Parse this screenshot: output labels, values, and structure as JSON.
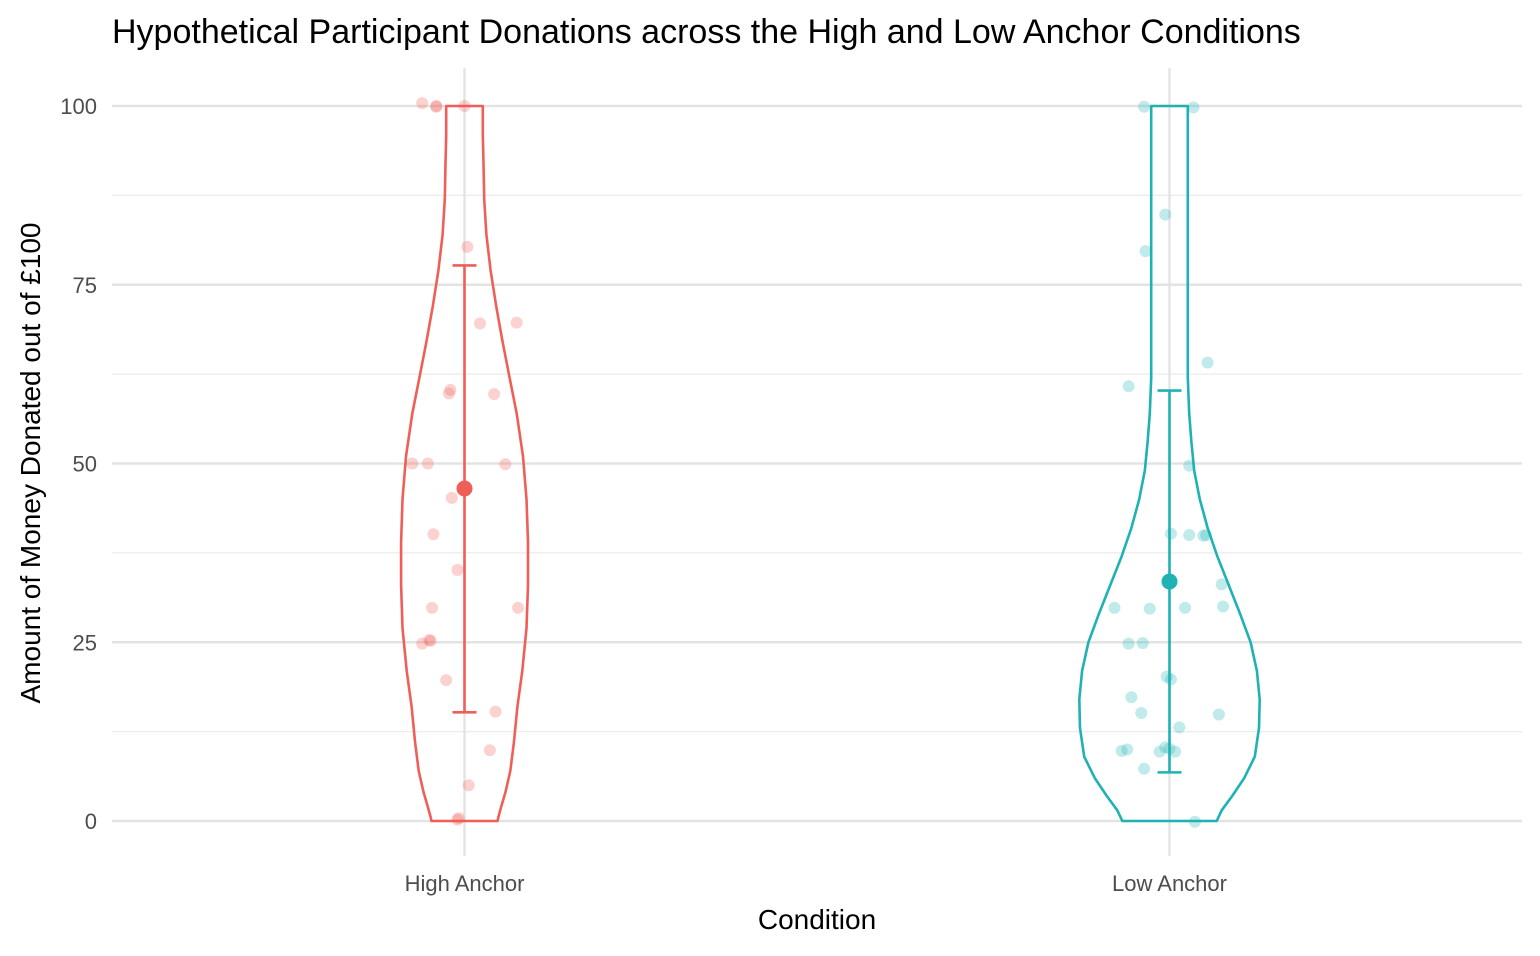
{
  "chart_data": {
    "type": "violin",
    "title": "Hypothetical Participant Donations across the High and Low Anchor Conditions",
    "xlabel": "Condition",
    "ylabel": "Amount of Money Donated out of £100",
    "ylim": [
      0,
      100
    ],
    "y_ticks": [
      0,
      25,
      50,
      75,
      100
    ],
    "y_tick_labels": [
      "0",
      "25",
      "50",
      "75",
      "100"
    ],
    "categories": [
      "High Anchor",
      "Low Anchor"
    ],
    "grid": true,
    "legend": "none",
    "series": [
      {
        "category": "High Anchor",
        "color": "#EF5F57",
        "mean": 46.5,
        "error_bar": [
          15.2,
          77.7
        ],
        "points": [
          {
            "dx": -0.06,
            "y": 100.4
          },
          {
            "dx": -0.04,
            "y": 100
          },
          {
            "dx": -0.04,
            "y": 99.9
          },
          {
            "dx": 0.0,
            "y": 100
          },
          {
            "dx": 0.004,
            "y": 80.3
          },
          {
            "dx": 0.022,
            "y": 69.6
          },
          {
            "dx": 0.074,
            "y": 69.7
          },
          {
            "dx": -0.02,
            "y": 60.3
          },
          {
            "dx": -0.022,
            "y": 59.8
          },
          {
            "dx": 0.042,
            "y": 59.7
          },
          {
            "dx": -0.074,
            "y": 50.0
          },
          {
            "dx": -0.052,
            "y": 50.0
          },
          {
            "dx": 0.058,
            "y": 49.9
          },
          {
            "dx": -0.018,
            "y": 45.2
          },
          {
            "dx": -0.044,
            "y": 40.1
          },
          {
            "dx": -0.01,
            "y": 35.1
          },
          {
            "dx": -0.046,
            "y": 29.8
          },
          {
            "dx": 0.076,
            "y": 29.8
          },
          {
            "dx": -0.05,
            "y": 25.3
          },
          {
            "dx": -0.048,
            "y": 25.2
          },
          {
            "dx": -0.06,
            "y": 24.8
          },
          {
            "dx": -0.026,
            "y": 19.7
          },
          {
            "dx": 0.044,
            "y": 15.3
          },
          {
            "dx": 0.036,
            "y": 9.9
          },
          {
            "dx": 0.006,
            "y": 5.0
          },
          {
            "dx": -0.01,
            "y": 0.2
          },
          {
            "dx": -0.008,
            "y": 0.4
          }
        ],
        "violin_profile": [
          [
            0,
            0.047
          ],
          [
            0.5,
            0.048
          ],
          [
            2,
            0.052
          ],
          [
            4,
            0.058
          ],
          [
            7,
            0.065
          ],
          [
            11,
            0.07
          ],
          [
            16,
            0.075
          ],
          [
            21,
            0.082
          ],
          [
            27,
            0.088
          ],
          [
            33,
            0.09
          ],
          [
            39,
            0.09
          ],
          [
            45,
            0.088
          ],
          [
            51,
            0.083
          ],
          [
            57,
            0.074
          ],
          [
            62,
            0.064
          ],
          [
            67,
            0.054
          ],
          [
            72,
            0.045
          ],
          [
            77,
            0.037
          ],
          [
            82,
            0.031
          ],
          [
            87,
            0.028
          ],
          [
            92,
            0.027
          ],
          [
            96,
            0.026
          ],
          [
            100,
            0.026
          ]
        ]
      },
      {
        "category": "Low Anchor",
        "color": "#1FB2B4",
        "mean": 33.5,
        "error_bar": [
          6.8,
          60.2
        ],
        "points": [
          {
            "dx": -0.036,
            "y": 99.9
          },
          {
            "dx": 0.034,
            "y": 99.8
          },
          {
            "dx": -0.006,
            "y": 84.8
          },
          {
            "dx": -0.034,
            "y": 79.7
          },
          {
            "dx": 0.054,
            "y": 64.1
          },
          {
            "dx": -0.058,
            "y": 60.8
          },
          {
            "dx": 0.028,
            "y": 49.7
          },
          {
            "dx": 0.002,
            "y": 40.2
          },
          {
            "dx": 0.028,
            "y": 40.0
          },
          {
            "dx": 0.048,
            "y": 39.9
          },
          {
            "dx": 0.052,
            "y": 40.0
          },
          {
            "dx": 0.0,
            "y": 33.2
          },
          {
            "dx": 0.074,
            "y": 33.1
          },
          {
            "dx": -0.078,
            "y": 29.8
          },
          {
            "dx": -0.028,
            "y": 29.7
          },
          {
            "dx": 0.022,
            "y": 29.8
          },
          {
            "dx": 0.076,
            "y": 30.0
          },
          {
            "dx": -0.058,
            "y": 24.8
          },
          {
            "dx": -0.038,
            "y": 24.9
          },
          {
            "dx": -0.004,
            "y": 20.2
          },
          {
            "dx": 0.002,
            "y": 19.8
          },
          {
            "dx": -0.054,
            "y": 17.3
          },
          {
            "dx": -0.04,
            "y": 15.1
          },
          {
            "dx": 0.07,
            "y": 14.9
          },
          {
            "dx": 0.014,
            "y": 13.1
          },
          {
            "dx": -0.068,
            "y": 9.8
          },
          {
            "dx": -0.06,
            "y": 10.0
          },
          {
            "dx": -0.014,
            "y": 9.7
          },
          {
            "dx": -0.006,
            "y": 10.3
          },
          {
            "dx": 0.0,
            "y": 10.1
          },
          {
            "dx": 0.008,
            "y": 9.7
          },
          {
            "dx": -0.036,
            "y": 7.3
          },
          {
            "dx": 0.036,
            "y": -0.1
          }
        ],
        "violin_profile": [
          [
            0,
            0.067
          ],
          [
            1.5,
            0.074
          ],
          [
            3.5,
            0.089
          ],
          [
            6,
            0.106
          ],
          [
            9,
            0.121
          ],
          [
            13,
            0.127
          ],
          [
            17,
            0.128
          ],
          [
            21,
            0.124
          ],
          [
            25,
            0.115
          ],
          [
            29,
            0.1
          ],
          [
            33,
            0.084
          ],
          [
            37,
            0.068
          ],
          [
            41,
            0.054
          ],
          [
            45,
            0.043
          ],
          [
            49,
            0.035
          ],
          [
            53,
            0.031
          ],
          [
            57,
            0.028
          ],
          [
            62,
            0.026
          ],
          [
            68,
            0.026
          ],
          [
            75,
            0.026
          ],
          [
            82,
            0.026
          ],
          [
            90,
            0.026
          ],
          [
            96,
            0.026
          ],
          [
            100,
            0.026
          ]
        ]
      }
    ]
  }
}
